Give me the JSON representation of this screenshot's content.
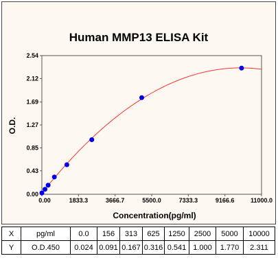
{
  "chart_data": {
    "type": "scatter",
    "title": "Human MMP13 ELISA Kit",
    "xlabel": "Concentration(pg/ml)",
    "ylabel": "O.D.",
    "xlim": [
      0,
      11000
    ],
    "ylim": [
      0,
      2.54
    ],
    "x_ticks": [
      "0.00",
      "1833.3",
      "3666.7",
      "5500.0",
      "7333.3",
      "9166.6",
      "11000.0"
    ],
    "y_ticks": [
      "0.00",
      "0.43",
      "0.85",
      "1.27",
      "1.69",
      "2.12",
      "2.54"
    ],
    "x": [
      0,
      156,
      313,
      625,
      1250,
      2500,
      5000,
      10000
    ],
    "y": [
      0.024,
      0.091,
      0.167,
      0.316,
      0.541,
      1.0,
      1.77,
      2.311
    ],
    "fit_curve": true,
    "colors": {
      "points": "#0000ee",
      "curve": "#ff3030",
      "background": "#fdf8f1"
    },
    "grid": false
  },
  "table": {
    "row_x": [
      "X",
      "pg/ml",
      "0.0",
      "156",
      "313",
      "625",
      "1250",
      "2500",
      "5000",
      "10000"
    ],
    "row_y": [
      "Y",
      "O.D.450",
      "0.024",
      "0.091",
      "0.167",
      "0.316",
      "0.541",
      "1.000",
      "1.770",
      "2.311"
    ]
  }
}
